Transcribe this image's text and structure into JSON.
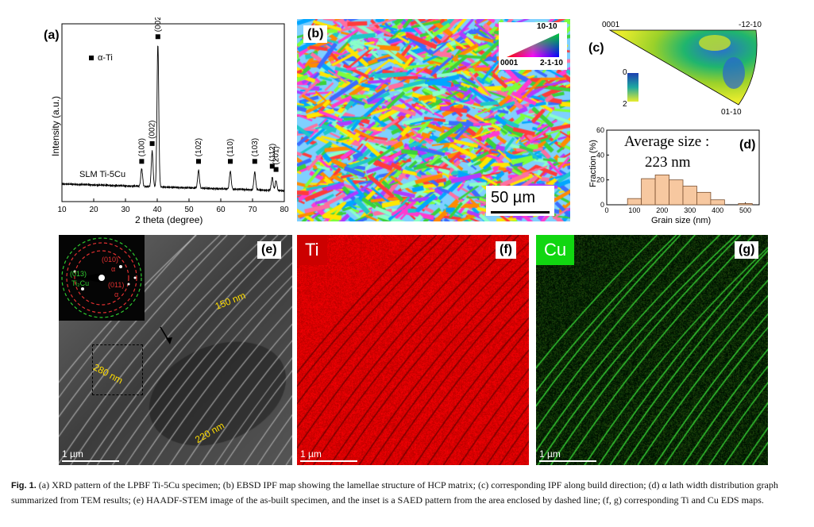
{
  "panel_a": {
    "label": "(a)",
    "ylabel": "Intensity (a.u.)",
    "xlabel": "2 theta (degree)",
    "legend": "α-Ti",
    "sample": "SLM Ti-5Cu",
    "chart_data": {
      "type": "line",
      "xlim": [
        10,
        80
      ],
      "xticks": [
        10,
        20,
        30,
        40,
        50,
        60,
        70,
        80
      ],
      "peaks": [
        {
          "x": 35.1,
          "label": "(100)",
          "height": 0.11
        },
        {
          "x": 38.4,
          "label": "(002)",
          "height": 0.22
        },
        {
          "x": 40.2,
          "label": "(002)",
          "height": 0.88
        },
        {
          "x": 53.0,
          "label": "(102)",
          "height": 0.11
        },
        {
          "x": 63.0,
          "label": "(110)",
          "height": 0.11
        },
        {
          "x": 70.7,
          "label": "(103)",
          "height": 0.11
        },
        {
          "x": 76.2,
          "label": "(112)",
          "height": 0.08
        },
        {
          "x": 77.4,
          "label": "(201)",
          "height": 0.06
        }
      ]
    }
  },
  "panel_b": {
    "label": "(b)",
    "scale": "50 µm",
    "ipf_top": "10-10",
    "ipf_left": "0001",
    "ipf_right": "2-1-10"
  },
  "panel_c": {
    "label": "(c)",
    "corner_left": "0001",
    "corner_right": "-12-10",
    "corner_bottom": "01-10",
    "colorbar_min": "0",
    "colorbar_max": "2"
  },
  "panel_d": {
    "label": "(d)",
    "title_line1": "Average size :",
    "title_line2": "223 nm",
    "ylabel": "Fraction (%)",
    "xlabel": "Grain size (nm)",
    "chart_data": {
      "type": "bar",
      "xlim": [
        0,
        550
      ],
      "ylim": [
        0,
        60
      ],
      "xticks": [
        0,
        100,
        200,
        300,
        400,
        500
      ],
      "yticks": [
        0,
        20,
        40,
        60
      ],
      "bin_centers": [
        100,
        150,
        200,
        250,
        300,
        350,
        400,
        500
      ],
      "values": [
        5,
        21,
        24,
        20,
        15,
        10,
        4,
        1
      ]
    }
  },
  "panel_e": {
    "label": "(e)",
    "scale": "1 µm",
    "m1": "150 nm",
    "m2": "280 nm",
    "m3": "220 nm",
    "inset_010": "(010)",
    "inset_alpha1": "α",
    "inset_011": "(011)",
    "inset_alpha2": "α",
    "inset_013": "(013)",
    "inset_ti2cu": "Ti₂Cu"
  },
  "panel_f": {
    "label": "(f)",
    "element": "Ti",
    "scale": "1 µm",
    "color": "#e60000"
  },
  "panel_g": {
    "label": "(g)",
    "element": "Cu",
    "scale": "1 µm",
    "color": "#11d611"
  },
  "caption": {
    "fig": "Fig. 1.",
    "text": "(a) XRD pattern of the LPBF Ti-5Cu specimen; (b) EBSD IPF map showing the lamellae structure of HCP matrix; (c) corresponding IPF along build direction; (d) α lath width distribution graph summarized from TEM results; (e) HAADF-STEM image of the as-built specimen, and the inset is a SAED pattern from the area enclosed by dashed line; (f, g) corresponding Ti and Cu EDS maps."
  }
}
